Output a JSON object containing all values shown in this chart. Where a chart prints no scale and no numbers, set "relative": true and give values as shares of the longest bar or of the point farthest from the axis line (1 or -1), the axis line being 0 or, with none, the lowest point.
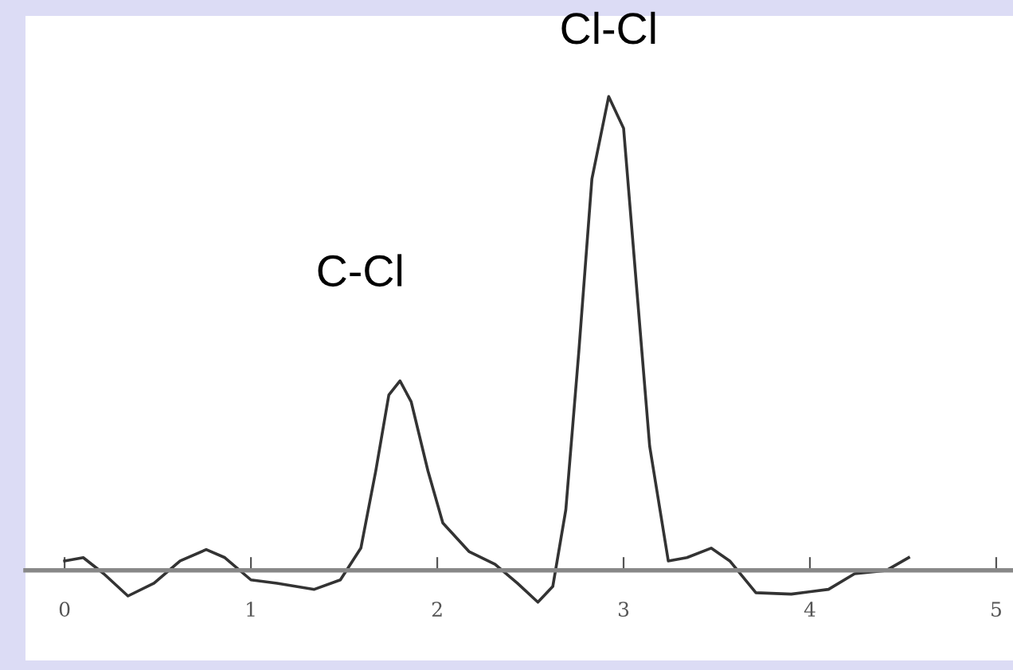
{
  "chart_data": {
    "type": "line",
    "relative": true,
    "x": [
      0,
      0.1,
      0.21,
      0.34,
      0.48,
      0.62,
      0.76,
      0.86,
      1.0,
      1.14,
      1.34,
      1.48,
      1.59,
      1.67,
      1.74,
      1.8,
      1.86,
      1.95,
      2.03,
      2.17,
      2.31,
      2.43,
      2.54,
      2.62,
      2.69,
      2.76,
      2.83,
      2.92,
      3.0,
      3.07,
      3.14,
      3.24,
      3.34,
      3.47,
      3.57,
      3.71,
      3.9,
      4.1,
      4.24,
      4.41,
      4.53
    ],
    "series": [
      {
        "color": "#333333",
        "values": [
          0.02,
          0.027,
          -0.007,
          -0.054,
          -0.027,
          0.02,
          0.044,
          0.027,
          -0.02,
          -0.027,
          -0.04,
          -0.02,
          0.047,
          0.21,
          0.37,
          0.4,
          0.356,
          0.21,
          0.1,
          0.04,
          0.013,
          -0.027,
          -0.067,
          -0.034,
          0.128,
          0.463,
          0.826,
          1.0,
          0.933,
          0.597,
          0.262,
          0.02,
          0.027,
          0.047,
          0.02,
          -0.047,
          -0.05,
          -0.04,
          -0.007,
          0,
          0.027
        ]
      }
    ],
    "xlim": [
      -0.21,
      5.09
    ],
    "xticks": [
      0,
      1,
      2,
      3,
      4,
      5
    ],
    "grid": false,
    "legend": false,
    "marker": "none",
    "line_style": "solid",
    "annotations": [
      "C-Cl",
      "Cl-Cl"
    ]
  }
}
